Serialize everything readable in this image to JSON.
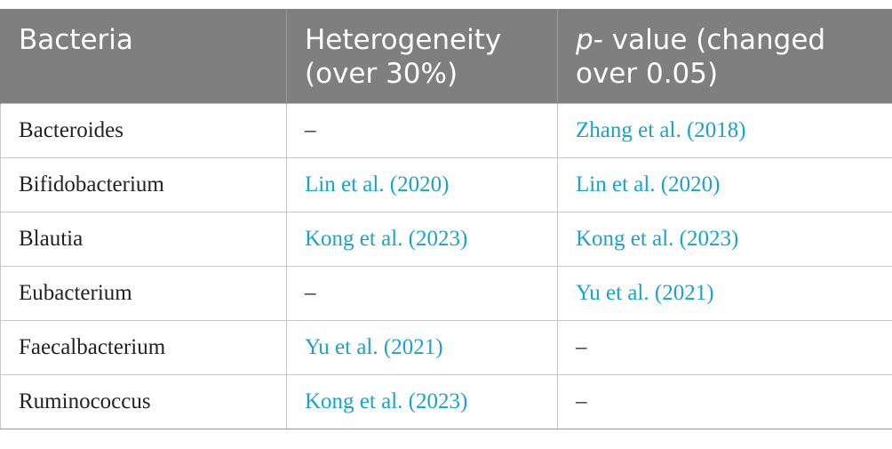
{
  "table": {
    "headers": [
      {
        "text": "Bacteria",
        "italic_prefix": ""
      },
      {
        "text": "Heterogeneity (over 30%)",
        "italic_prefix": ""
      },
      {
        "text": "- value (changed over 0.05)",
        "italic_prefix": "p"
      }
    ],
    "rows": [
      {
        "bacteria": "Bacteroides",
        "heterogeneity": "–",
        "p_value": "Zhang et al. (2018)"
      },
      {
        "bacteria": "Bifidobacterium",
        "heterogeneity": "Lin et al. (2020)",
        "p_value": "Lin et al. (2020)"
      },
      {
        "bacteria": "Blautia",
        "heterogeneity": "Kong et al. (2023)",
        "p_value": "Kong et al. (2023)"
      },
      {
        "bacteria": "Eubacterium",
        "heterogeneity": "–",
        "p_value": "Yu et al. (2021)"
      },
      {
        "bacteria": "Faecalbacterium",
        "heterogeneity": "Yu et al. (2021)",
        "p_value": "–"
      },
      {
        "bacteria": "Ruminococcus",
        "heterogeneity": "Kong et al. (2023)",
        "p_value": "–"
      }
    ]
  },
  "colors": {
    "header_bg": "#7f7f7f",
    "header_text": "#ffffff",
    "link": "#1ba3c6",
    "body_text": "#222222",
    "grid": "#c8c8c8"
  }
}
